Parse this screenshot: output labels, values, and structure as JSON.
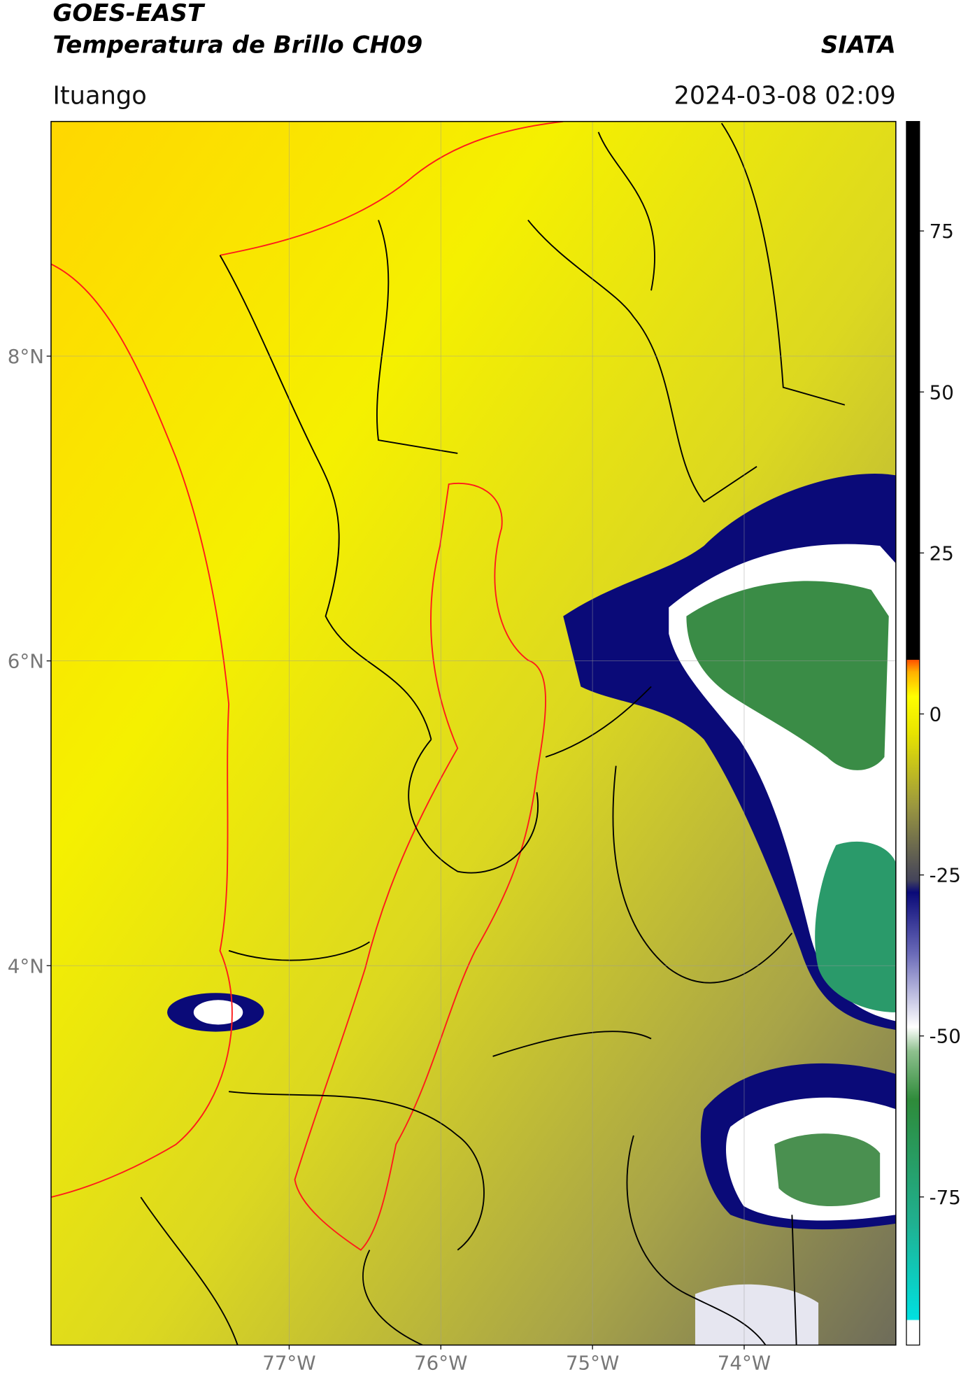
{
  "chart_data": {
    "type": "map",
    "title": "GOES-EAST",
    "subtitle": "Temperatura de Brillo CH09",
    "source": "SIATA",
    "location": "Ituango",
    "timestamp": "2024-03-08 02:09",
    "xlim": [
      -78.57,
      -73.0
    ],
    "xticks": [
      {
        "value": -77,
        "label": "77°W"
      },
      {
        "value": -76,
        "label": "76°W"
      },
      {
        "value": -75,
        "label": "75°W"
      },
      {
        "value": -74,
        "label": "74°W"
      }
    ],
    "ylim": [
      1.51,
      9.54
    ],
    "yticks": [
      {
        "value": 8,
        "label": "8°N"
      },
      {
        "value": 6,
        "label": "6°N"
      },
      {
        "value": 4,
        "label": "4°N"
      }
    ],
    "grid": true,
    "colorbar": {
      "lim": [
        -98,
        92
      ],
      "ticks": [
        75,
        50,
        25,
        0,
        -25,
        -50,
        -75
      ]
    }
  }
}
